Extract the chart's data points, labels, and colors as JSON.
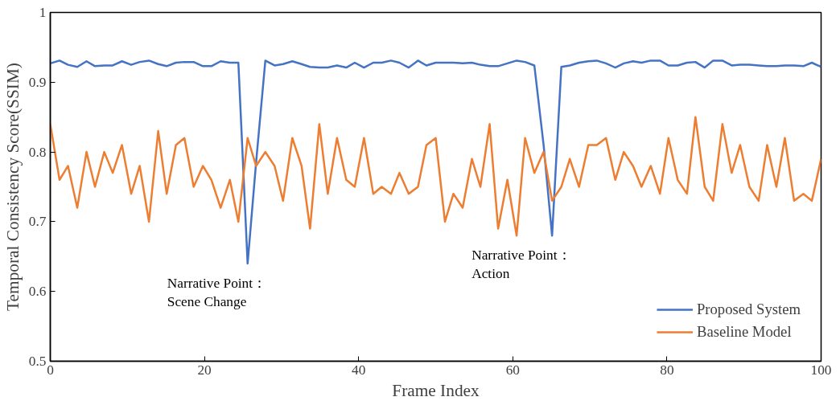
{
  "chart_data": {
    "type": "line",
    "xlabel": "Frame Index",
    "ylabel": "Temporal Consistency Score(SSIM)",
    "x": [
      0,
      1.2,
      2.3,
      3.5,
      4.7,
      5.8,
      7.0,
      8.1,
      9.3,
      10.5,
      11.6,
      12.8,
      14.0,
      15.1,
      16.3,
      17.4,
      18.6,
      19.8,
      20.9,
      22.1,
      23.3,
      24.4,
      25.6,
      26.7,
      27.9,
      29.1,
      30.2,
      31.4,
      32.6,
      33.7,
      34.9,
      36.0,
      37.2,
      38.4,
      39.5,
      40.7,
      41.9,
      43.0,
      44.2,
      45.3,
      46.5,
      47.7,
      48.8,
      50.0,
      51.2,
      52.3,
      53.5,
      54.7,
      55.8,
      57.0,
      58.1,
      59.3,
      60.5,
      61.6,
      62.8,
      64.0,
      65.1,
      66.3,
      67.4,
      68.6,
      69.8,
      70.9,
      72.1,
      73.3,
      74.4,
      75.6,
      76.7,
      77.9,
      79.1,
      80.2,
      81.4,
      82.6,
      83.7,
      84.9,
      86.0,
      87.2,
      88.4,
      89.5,
      90.7,
      91.9,
      93.0,
      94.2,
      95.3,
      96.5,
      97.7,
      98.8,
      100
    ],
    "series": [
      {
        "name": "Proposed System",
        "color": "#4472c4",
        "values": [
          0.927,
          0.931,
          0.925,
          0.922,
          0.93,
          0.923,
          0.924,
          0.924,
          0.93,
          0.925,
          0.929,
          0.931,
          0.926,
          0.923,
          0.928,
          0.929,
          0.929,
          0.923,
          0.923,
          0.93,
          0.928,
          0.928,
          0.64,
          0.785,
          0.931,
          0.924,
          0.926,
          0.93,
          0.926,
          0.922,
          0.921,
          0.921,
          0.924,
          0.921,
          0.928,
          0.921,
          0.928,
          0.928,
          0.931,
          0.928,
          0.921,
          0.931,
          0.924,
          0.928,
          0.928,
          0.928,
          0.927,
          0.928,
          0.925,
          0.923,
          0.923,
          0.927,
          0.931,
          0.929,
          0.924,
          0.81,
          0.68,
          0.922,
          0.924,
          0.928,
          0.93,
          0.931,
          0.927,
          0.921,
          0.927,
          0.93,
          0.928,
          0.931,
          0.931,
          0.924,
          0.924,
          0.928,
          0.929,
          0.921,
          0.931,
          0.931,
          0.924,
          0.925,
          0.925,
          0.924,
          0.923,
          0.923,
          0.924,
          0.924,
          0.923,
          0.928,
          0.922
        ]
      },
      {
        "name": "Baseline Model",
        "color": "#ed7d31",
        "values": [
          0.84,
          0.76,
          0.78,
          0.72,
          0.8,
          0.75,
          0.8,
          0.77,
          0.81,
          0.74,
          0.78,
          0.7,
          0.83,
          0.74,
          0.81,
          0.82,
          0.75,
          0.78,
          0.76,
          0.72,
          0.76,
          0.7,
          0.82,
          0.78,
          0.8,
          0.78,
          0.73,
          0.82,
          0.78,
          0.69,
          0.84,
          0.74,
          0.82,
          0.76,
          0.75,
          0.82,
          0.74,
          0.75,
          0.74,
          0.77,
          0.74,
          0.75,
          0.81,
          0.82,
          0.7,
          0.74,
          0.72,
          0.79,
          0.75,
          0.84,
          0.69,
          0.76,
          0.68,
          0.82,
          0.77,
          0.8,
          0.73,
          0.75,
          0.79,
          0.75,
          0.81,
          0.81,
          0.82,
          0.76,
          0.8,
          0.78,
          0.75,
          0.78,
          0.74,
          0.82,
          0.76,
          0.74,
          0.85,
          0.75,
          0.73,
          0.84,
          0.77,
          0.81,
          0.75,
          0.73,
          0.81,
          0.75,
          0.82,
          0.73,
          0.74,
          0.73,
          0.79
        ]
      }
    ],
    "xlim": [
      0,
      100
    ],
    "xticks": [
      0,
      20,
      40,
      60,
      80,
      100
    ],
    "ylim": [
      0.5,
      1
    ],
    "yticks": [
      0.5,
      0.6,
      0.7,
      0.8,
      0.9,
      1
    ],
    "annotations": [
      {
        "text": "Narrative Point：\nScene Change",
        "x": 25.6,
        "y": 0.64
      },
      {
        "text": "Narrative Point：\nAction",
        "x": 65.1,
        "y": 0.68
      }
    ],
    "legend": "bottom right",
    "grid": false,
    "marker": "none",
    "line_style": "solid"
  }
}
